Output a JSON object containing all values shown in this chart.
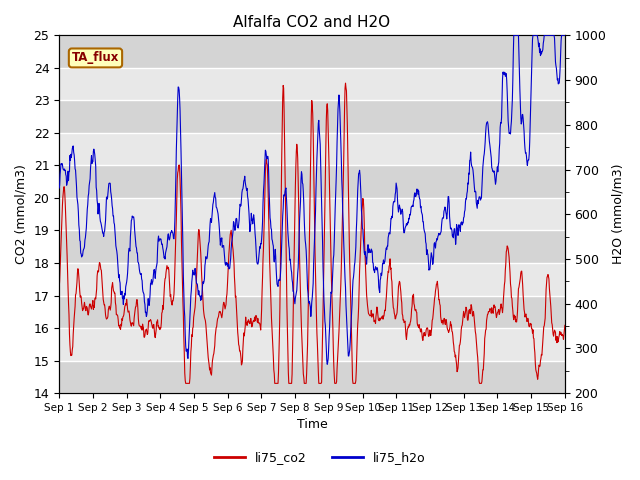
{
  "title": "Alfalfa CO2 and H2O",
  "xlabel": "Time",
  "ylabel_left": "CO2 (mmol/m3)",
  "ylabel_right": "H2O (mmol/m3)",
  "ylim_left": [
    14.0,
    25.0
  ],
  "ylim_right": [
    200,
    1000
  ],
  "yticks_left": [
    14.0,
    15.0,
    16.0,
    17.0,
    18.0,
    19.0,
    20.0,
    21.0,
    22.0,
    23.0,
    24.0,
    25.0
  ],
  "yticks_right": [
    200,
    300,
    400,
    500,
    600,
    700,
    800,
    900,
    1000
  ],
  "xtick_labels": [
    "Sep 1",
    "Sep 2",
    "Sep 3",
    "Sep 4",
    "Sep 5",
    "Sep 6",
    "Sep 7",
    "Sep 8",
    "Sep 9",
    "Sep 10",
    "Sep 11",
    "Sep 12",
    "Sep 13",
    "Sep 14",
    "Sep 15",
    "Sep 16"
  ],
  "color_co2": "#cc0000",
  "color_h2o": "#0000cc",
  "line_width": 0.8,
  "label_co2": "li75_co2",
  "label_h2o": "li75_h2o",
  "ta_flux_label": "TA_flux",
  "background_color": "#ffffff",
  "plot_bg_color": "#e8e8e8",
  "band_light": "#e8e8e8",
  "band_dark": "#d4d4d4",
  "grid_color": "#ffffff",
  "title_fontsize": 11,
  "axis_label_fontsize": 9,
  "tick_fontsize": 9
}
